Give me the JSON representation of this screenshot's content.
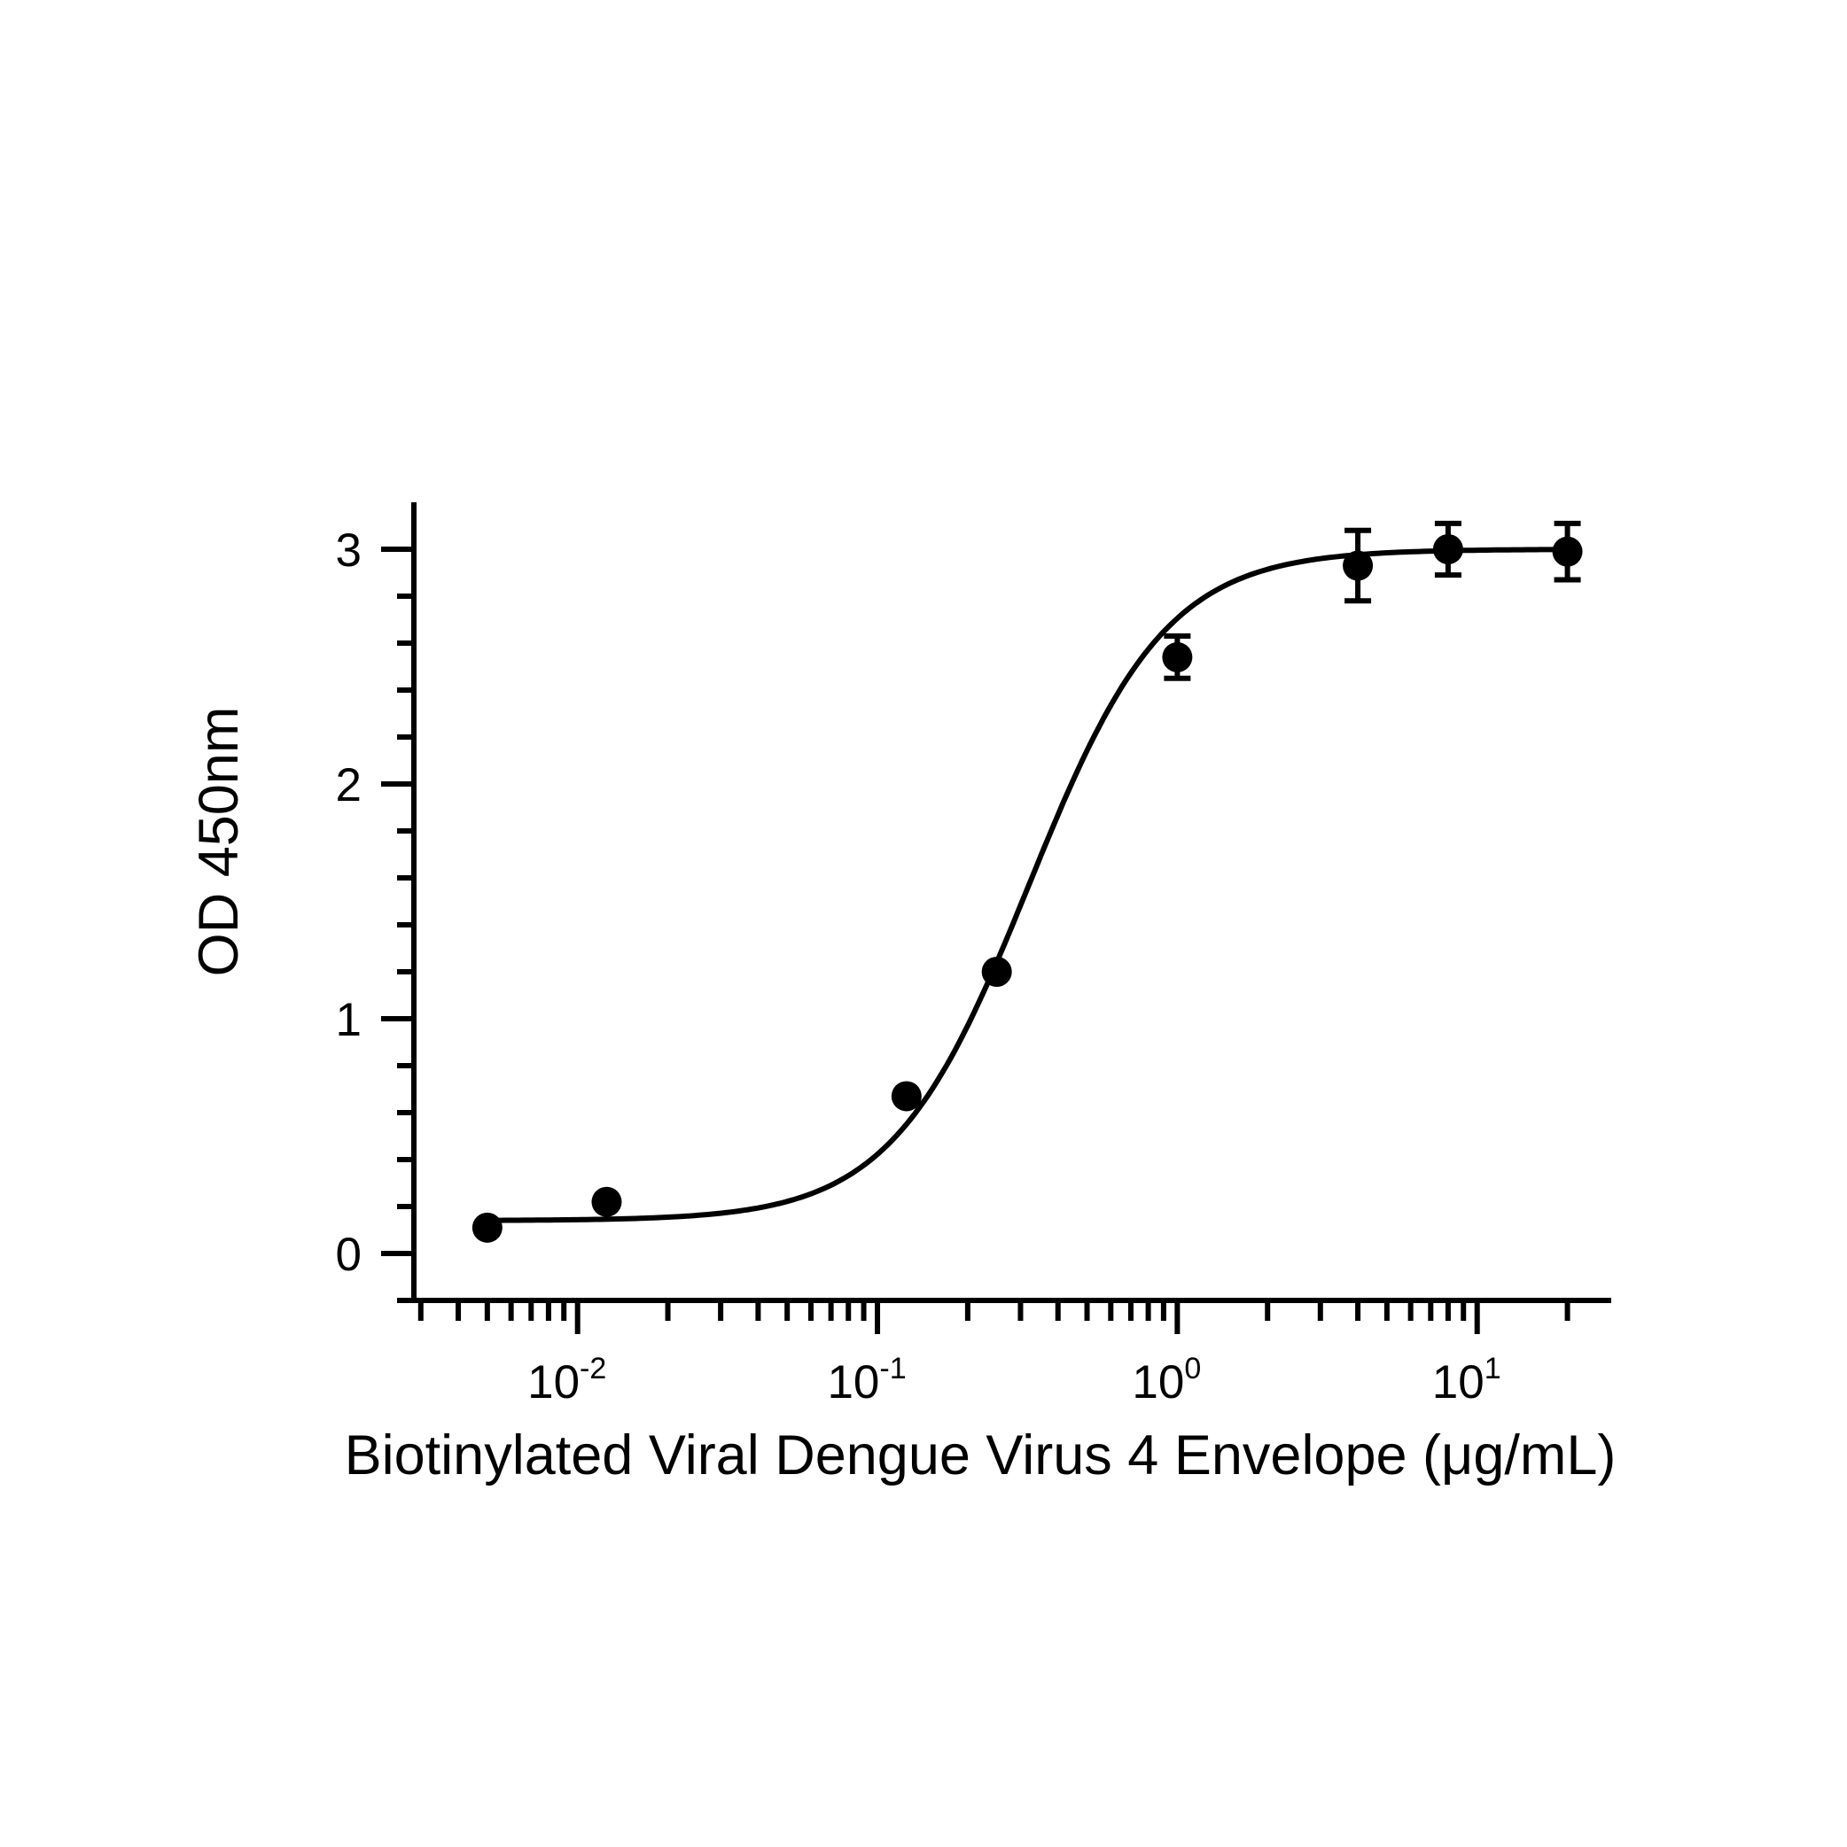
{
  "chart_data": {
    "type": "scatter",
    "xlabel": "Biotinylated Viral Dengue Virus 4 Envelope (μg/mL)",
    "ylabel": "OD 450nm",
    "x_scale": "log",
    "xlim": [
      0.0025,
      28
    ],
    "ylim": [
      -0.2,
      3.2
    ],
    "grid": false,
    "x_tick_labels": [
      {
        "value": 0.01,
        "base": "10",
        "exp": "-2"
      },
      {
        "value": 0.1,
        "base": "10",
        "exp": "-1"
      },
      {
        "value": 1,
        "base": "10",
        "exp": "0"
      },
      {
        "value": 10,
        "base": "10",
        "exp": "1"
      }
    ],
    "y_tick_labels": [
      "0",
      "1",
      "2",
      "3"
    ],
    "points": [
      {
        "x": 0.005,
        "y": 0.11,
        "err": 0
      },
      {
        "x": 0.0125,
        "y": 0.22,
        "err": 0
      },
      {
        "x": 0.125,
        "y": 0.67,
        "err": 0
      },
      {
        "x": 0.25,
        "y": 1.2,
        "err": 0
      },
      {
        "x": 1.0,
        "y": 2.54,
        "err": 0.09
      },
      {
        "x": 4.0,
        "y": 2.93,
        "err": 0.15
      },
      {
        "x": 8.0,
        "y": 3.0,
        "err": 0.11
      },
      {
        "x": 20.0,
        "y": 2.99,
        "err": 0.12
      }
    ],
    "fit": {
      "type": "4PL",
      "bottom": 0.14,
      "top": 3.0,
      "ec50": 0.32,
      "hill": 1.9
    }
  }
}
